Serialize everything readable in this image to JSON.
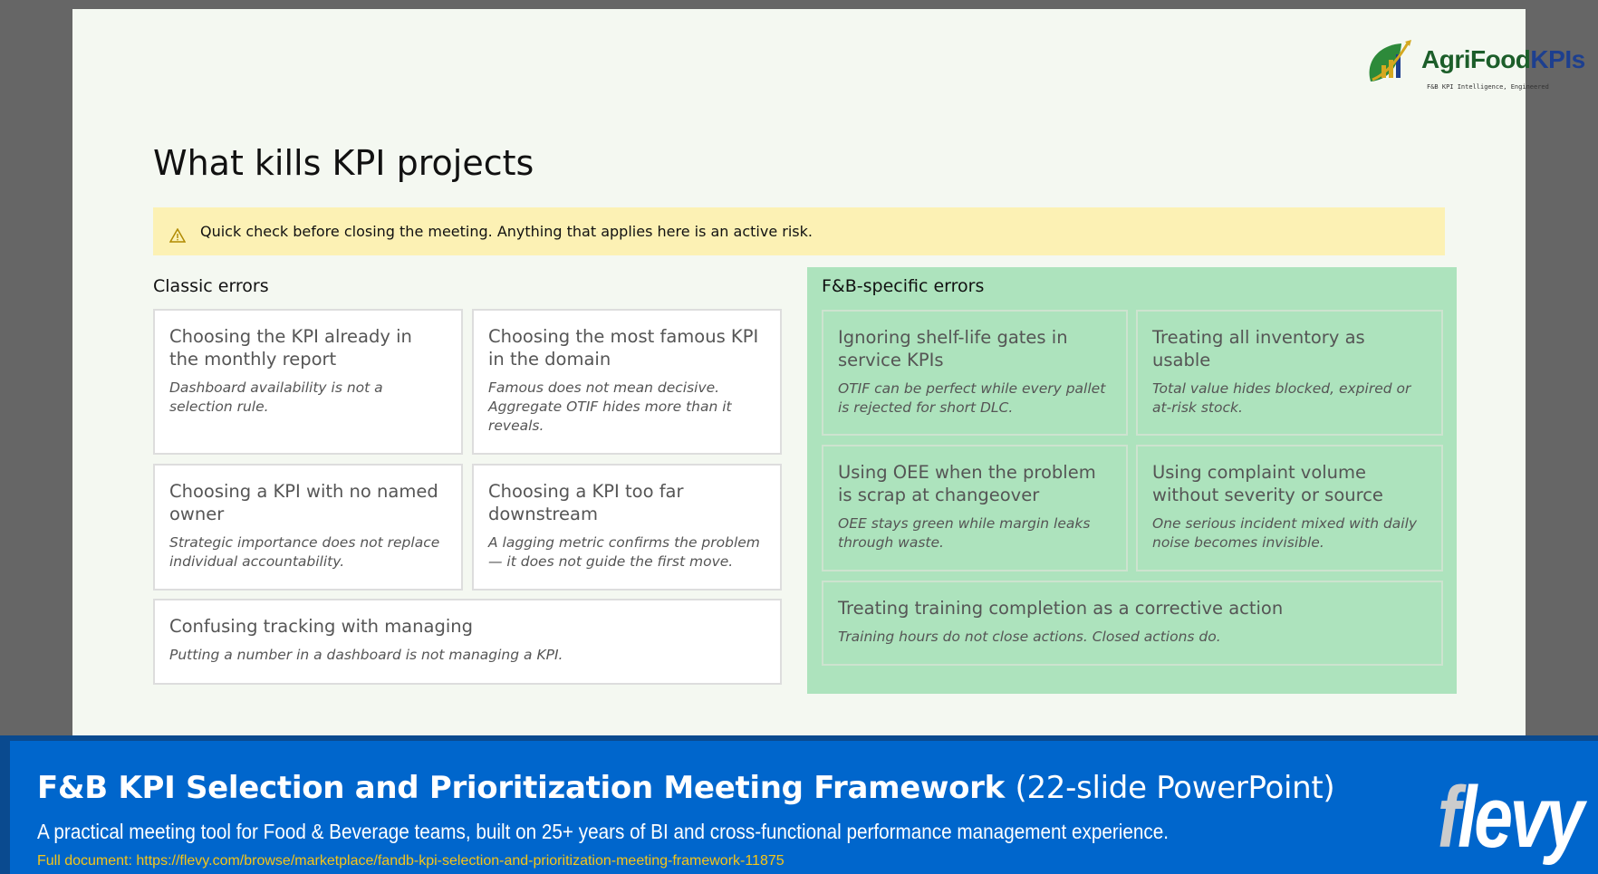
{
  "slide": {
    "logo": {
      "name": "AgriFood",
      "name_accent": "KPIs",
      "tagline": "F&B KPI Intelligence, Engineered"
    },
    "title": "What kills KPI projects",
    "warning": {
      "icon": "warning-triangle-icon",
      "text": "Quick check before closing the meeting. Anything that applies here is an active risk."
    },
    "classic": {
      "label": "Classic errors",
      "cards": [
        {
          "title": "Choosing the KPI already in the monthly report",
          "desc": "Dashboard availability is not a selection rule."
        },
        {
          "title": "Choosing the most famous KPI in the domain",
          "desc": "Famous does not mean decisive. Aggregate OTIF hides more than it reveals."
        },
        {
          "title": "Choosing a KPI with no named owner",
          "desc": "Strategic importance does not replace individual accountability."
        },
        {
          "title": "Choosing a KPI too far downstream",
          "desc": "A lagging metric confirms the problem — it does not guide the first move."
        },
        {
          "title": "Confusing tracking with managing",
          "desc": "Putting a number in a dashboard is not managing a KPI."
        }
      ]
    },
    "fnb": {
      "label": "F&B-specific errors",
      "cards": [
        {
          "title": "Ignoring shelf-life gates in service KPIs",
          "desc": "OTIF can be perfect while every pallet is rejected for short DLC."
        },
        {
          "title": "Treating all inventory as usable",
          "desc": "Total value hides blocked, expired or at-risk stock."
        },
        {
          "title": "Using OEE when the problem is scrap at changeover",
          "desc": "OEE stays green while margin leaks through waste."
        },
        {
          "title": "Using complaint volume without severity or source",
          "desc": "One serious incident mixed with daily noise becomes invisible."
        },
        {
          "title": "Treating training completion as a corrective action",
          "desc": "Training hours do not close actions. Closed actions do."
        }
      ]
    }
  },
  "banner": {
    "title": "F&B KPI Selection and Prioritization Meeting Framework",
    "title_suffix": "(22-slide PowerPoint)",
    "subtitle": "A practical meeting tool for Food & Beverage teams, built on 25+ years of BI and cross-functional performance management experience.",
    "url": "Full document: https://flevy.com/browse/marketplace/fandb-kpi-selection-and-prioritization-meeting-framework-11875",
    "brand": "flevy"
  },
  "colors": {
    "warning_bg": "#fcf1b4",
    "green_panel": "#ade3bd",
    "banner": "#0066cc",
    "url": "#f5c518"
  }
}
